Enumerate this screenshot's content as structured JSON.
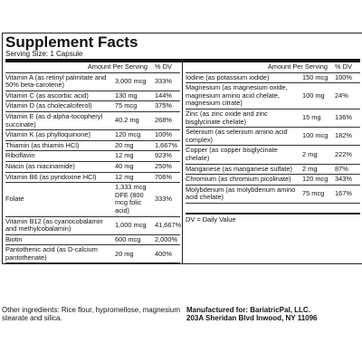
{
  "title": "Supplement Facts",
  "serving_size": "Serving Size: 1 Capsule",
  "left": {
    "header": {
      "amount": "Amount Per Serving",
      "dv": "% DV"
    },
    "rows": [
      {
        "nutrient": "Vitamin A (as retinyl palmitate and 50% beta-carotene)",
        "amount": "3,000 mcg",
        "dv": "333%"
      },
      {
        "nutrient": "Vitamin C (as ascorbic acid)",
        "amount": "130 mg",
        "dv": "144%"
      },
      {
        "nutrient": "Vitamin D (as cholecalciferol)",
        "amount": "75 mcg",
        "dv": "375%"
      },
      {
        "nutrient": "Vitamin E (as d-alpha-tocopheryl succinate)",
        "amount": "40.2 mg",
        "dv": "268%"
      },
      {
        "nutrient": "Vitamin K (as phylloquinone)",
        "amount": "120 mcg",
        "dv": "100%"
      },
      {
        "nutrient": "Thiamin (as thiamin HCl)",
        "amount": "20 mg",
        "dv": "1,667%"
      },
      {
        "nutrient": "Riboflavin",
        "amount": "12 mg",
        "dv": "923%"
      },
      {
        "nutrient": "Niacin (as niacinamide)",
        "amount": "40 mg",
        "dv": "250%"
      },
      {
        "nutrient": "Vitamin B6 (as pyridoxine HCl)",
        "amount": "12 mg",
        "dv": "706%"
      },
      {
        "nutrient": "Folate",
        "amount": "1,333 mcg DFE (800 mcg folic acid)",
        "dv": "333%"
      },
      {
        "nutrient": "Vitamin B12 (as cyanocobalamin and methylcobalamin)",
        "amount": "1,000 mcg",
        "dv": "41,667%"
      },
      {
        "nutrient": "Biotin",
        "amount": "600 mcg",
        "dv": "2,000%"
      },
      {
        "nutrient": "Pantothenic acid (as D-calcium pantothenate)",
        "amount": "20 mg",
        "dv": "400%"
      }
    ]
  },
  "right": {
    "header": {
      "amount": "Amount Per Serving",
      "dv": "% DV"
    },
    "rows": [
      {
        "nutrient": "Iodine (as potassium iodide)",
        "amount": "150 mcg",
        "dv": "100%"
      },
      {
        "nutrient": "Magnesium (as magnesium oxide, magnesium amino acid chelate, magnesium citrate)",
        "amount": "100 mg",
        "dv": "24%"
      },
      {
        "nutrient": "Zinc (as zinc oxide and zinc bisglycinate chelate)",
        "amount": "15 mg",
        "dv": "136%"
      },
      {
        "nutrient": "Selenium (as selenium amino acid complex)",
        "amount": "100 mcg",
        "dv": "182%"
      },
      {
        "nutrient": "Copper (as copper bisglycinate chelate)",
        "amount": "2 mg",
        "dv": "222%"
      },
      {
        "nutrient": "Manganese (as manganese sulfate)",
        "amount": "2 mg",
        "dv": "87%"
      },
      {
        "nutrient": "Chromium (as chromium picolinate)",
        "amount": "120 mcg",
        "dv": "343%"
      },
      {
        "nutrient": "Molybdenum (as molybdenum amino acid chelate)",
        "amount": "75 mcg",
        "dv": "167%"
      }
    ],
    "note": "DV = Daily Value"
  },
  "footer": {
    "ingredients": "Other ingredients: Rice flour, hypromellose, magnesium stearate and silica.",
    "manufacturer": "Manufactured for: BariatricPal, LLC.",
    "address": "203A Sheridan Blvd  Inwood, NY 11096"
  }
}
